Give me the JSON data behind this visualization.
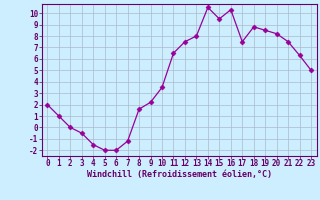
{
  "x": [
    0,
    1,
    2,
    3,
    4,
    5,
    6,
    7,
    8,
    9,
    10,
    11,
    12,
    13,
    14,
    15,
    16,
    17,
    18,
    19,
    20,
    21,
    22,
    23
  ],
  "y": [
    2.0,
    1.0,
    0.0,
    -0.5,
    -1.5,
    -2.0,
    -2.0,
    -1.2,
    1.6,
    2.2,
    3.5,
    6.5,
    7.5,
    8.0,
    10.5,
    9.5,
    10.3,
    7.5,
    8.8,
    8.5,
    8.2,
    7.5,
    6.3,
    5.0
  ],
  "line_color": "#990099",
  "marker": "D",
  "marker_size": 2.5,
  "bg_color": "#cceeff",
  "grid_color": "#aabbcc",
  "xlabel": "Windchill (Refroidissement éolien,°C)",
  "xlabel_color": "#660066",
  "tick_color": "#660066",
  "ylim": [
    -2.5,
    10.8
  ],
  "xlim": [
    -0.5,
    23.5
  ],
  "yticks": [
    -2,
    -1,
    0,
    1,
    2,
    3,
    4,
    5,
    6,
    7,
    8,
    9,
    10
  ],
  "xticks": [
    0,
    1,
    2,
    3,
    4,
    5,
    6,
    7,
    8,
    9,
    10,
    11,
    12,
    13,
    14,
    15,
    16,
    17,
    18,
    19,
    20,
    21,
    22,
    23
  ],
  "font_family": "monospace",
  "tick_fontsize": 5.5,
  "xlabel_fontsize": 6.0
}
